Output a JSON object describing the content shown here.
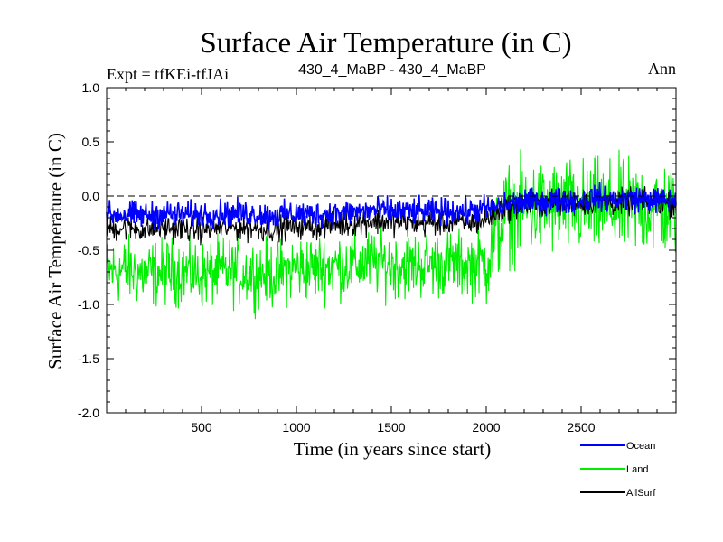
{
  "chart_data": {
    "type": "line",
    "title": "Surface Air Temperature (in C)",
    "left_label": "Expt = tfKEi-tfJAi",
    "center_label": "430_4_MaBP - 430_4_MaBP",
    "right_label": "Ann",
    "xlabel": "Time (in years since start)",
    "ylabel": "Surface Air Temperature (in C)",
    "xlim": [
      0,
      3000
    ],
    "ylim": [
      -2.0,
      1.0
    ],
    "x_ticks": [
      500,
      1000,
      1500,
      2000,
      2500
    ],
    "y_ticks": [
      -2.0,
      -1.5,
      -1.0,
      -0.5,
      0.0,
      0.5,
      1.0
    ],
    "y_tick_labels": [
      "-2.0",
      "-1.5",
      "-1.0",
      "-0.5",
      "0.0",
      "0.5",
      "1.0"
    ],
    "reference_line": 0.0,
    "legend_placement": "bottom-right",
    "series": [
      {
        "name": "Ocean",
        "color": "#0000ff",
        "x": [
          0,
          100,
          200,
          300,
          400,
          500,
          600,
          700,
          800,
          900,
          1000,
          1100,
          1200,
          1300,
          1400,
          1500,
          1600,
          1700,
          1800,
          1900,
          2000,
          2100,
          2200,
          2300,
          2400,
          2500,
          2600,
          2700,
          2800,
          2900,
          3000
        ],
        "values": [
          -0.18,
          -0.17,
          -0.18,
          -0.16,
          -0.17,
          -0.17,
          -0.16,
          -0.16,
          -0.17,
          -0.18,
          -0.16,
          -0.17,
          -0.16,
          -0.15,
          -0.13,
          -0.14,
          -0.14,
          -0.15,
          -0.14,
          -0.14,
          -0.12,
          -0.08,
          -0.06,
          -0.05,
          -0.04,
          -0.03,
          -0.02,
          -0.03,
          -0.02,
          -0.03,
          -0.04
        ],
        "spread": 0.12
      },
      {
        "name": "Land",
        "color": "#00ee00",
        "x": [
          0,
          100,
          200,
          300,
          400,
          500,
          600,
          700,
          800,
          900,
          1000,
          1100,
          1200,
          1300,
          1400,
          1500,
          1600,
          1700,
          1800,
          1900,
          2000,
          2100,
          2200,
          2300,
          2400,
          2500,
          2600,
          2700,
          2800,
          2900,
          3000
        ],
        "values": [
          -0.7,
          -0.68,
          -0.72,
          -0.7,
          -0.69,
          -0.73,
          -0.7,
          -0.7,
          -0.71,
          -0.72,
          -0.66,
          -0.66,
          -0.64,
          -0.63,
          -0.61,
          -0.63,
          -0.64,
          -0.63,
          -0.62,
          -0.64,
          -0.6,
          -0.18,
          -0.12,
          -0.12,
          -0.1,
          -0.12,
          -0.11,
          -0.12,
          -0.1,
          -0.12,
          -0.13
        ],
        "spread": 0.3
      },
      {
        "name": "AllSurf",
        "color": "#000000",
        "x": [
          0,
          100,
          200,
          300,
          400,
          500,
          600,
          700,
          800,
          900,
          1000,
          1100,
          1200,
          1300,
          1400,
          1500,
          1600,
          1700,
          1800,
          1900,
          2000,
          2100,
          2200,
          2300,
          2400,
          2500,
          2600,
          2700,
          2800,
          2900,
          3000
        ],
        "values": [
          -0.3,
          -0.29,
          -0.31,
          -0.29,
          -0.3,
          -0.31,
          -0.29,
          -0.29,
          -0.3,
          -0.31,
          -0.27,
          -0.28,
          -0.26,
          -0.25,
          -0.23,
          -0.24,
          -0.25,
          -0.25,
          -0.24,
          -0.25,
          -0.22,
          -0.11,
          -0.08,
          -0.07,
          -0.06,
          -0.06,
          -0.05,
          -0.06,
          -0.05,
          -0.06,
          -0.07
        ],
        "spread": 0.12
      }
    ]
  }
}
